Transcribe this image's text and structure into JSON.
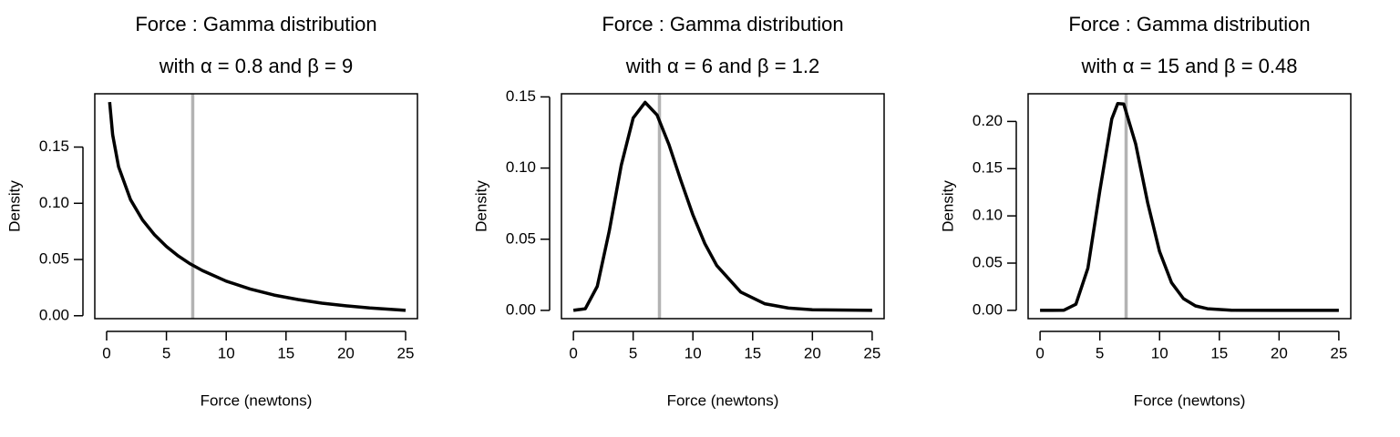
{
  "chart_data": [
    {
      "type": "line",
      "title": "Force :  Gamma distribution",
      "subtitle": "with α = 0.8 and β = 9",
      "x_label": "Force (newtons)",
      "y_label": "Density",
      "color": "#000000",
      "x": [
        0.25,
        0.5,
        1,
        2,
        3,
        4,
        5,
        6,
        7,
        8,
        10,
        12,
        14,
        16,
        18,
        20,
        22,
        25
      ],
      "values": [
        0.19,
        0.161,
        0.1325,
        0.1032,
        0.0852,
        0.072,
        0.0616,
        0.0531,
        0.0461,
        0.0402,
        0.0308,
        0.0238,
        0.0184,
        0.0144,
        0.0112,
        0.0088,
        0.0069,
        0.0048
      ],
      "vline": {
        "x": 7.2,
        "color": "#b3b3b3"
      },
      "xlim": [
        -0.99,
        25.99
      ],
      "xticks": [
        0,
        5,
        10,
        15,
        20,
        25
      ],
      "ylim": [
        -0.0026,
        0.1974
      ],
      "yticks": [
        {
          "value": 0,
          "label": "0.00"
        },
        {
          "value": 0.05,
          "label": "0.05"
        },
        {
          "value": 0.1,
          "label": "0.10"
        },
        {
          "value": 0.15,
          "label": "0.15"
        }
      ]
    },
    {
      "type": "line",
      "title": "Force :  Gamma distribution",
      "subtitle": "with α = 6 and β = 1.2",
      "x_label": "Force (newtons)",
      "y_label": "Density",
      "color": "#000000",
      "x": [
        0,
        1,
        2,
        3,
        4,
        5,
        6,
        7,
        8,
        9,
        10,
        11,
        12,
        14,
        16,
        18,
        20,
        25
      ],
      "values": [
        0,
        0.0012,
        0.0169,
        0.0557,
        0.1019,
        0.1352,
        0.1462,
        0.1373,
        0.1164,
        0.0911,
        0.0671,
        0.0469,
        0.0315,
        0.0129,
        0.0047,
        0.0016,
        0.0005,
        0
      ],
      "vline": {
        "x": 7.2,
        "color": "#b3b3b3"
      },
      "xlim": [
        -1,
        26
      ],
      "xticks": [
        0,
        5,
        10,
        15,
        20,
        25
      ],
      "ylim": [
        -0.0058,
        0.1522
      ],
      "yticks": [
        {
          "value": 0,
          "label": "0.00"
        },
        {
          "value": 0.05,
          "label": "0.05"
        },
        {
          "value": 0.1,
          "label": "0.10"
        },
        {
          "value": 0.15,
          "label": "0.15"
        }
      ]
    },
    {
      "type": "line",
      "title": "Force :  Gamma distribution",
      "subtitle": "with α = 15 and β = 0.48",
      "x_label": "Force (newtons)",
      "y_label": "Density",
      "color": "#000000",
      "x": [
        0,
        1,
        2,
        3,
        4,
        5,
        6,
        6.5,
        7,
        8,
        9,
        10,
        11,
        12,
        13,
        14,
        16,
        20,
        25
      ],
      "values": [
        0,
        0,
        0.0002,
        0.0064,
        0.0448,
        0.1267,
        0.2027,
        0.219,
        0.2185,
        0.1762,
        0.1142,
        0.0622,
        0.0294,
        0.0124,
        0.0047,
        0.0017,
        0.0002,
        0,
        0
      ],
      "vline": {
        "x": 7.2,
        "color": "#b3b3b3"
      },
      "xlim": [
        -1,
        26
      ],
      "xticks": [
        0,
        5,
        10,
        15,
        20,
        25
      ],
      "ylim": [
        -0.0088,
        0.2293
      ],
      "yticks": [
        {
          "value": 0,
          "label": "0.00"
        },
        {
          "value": 0.05,
          "label": "0.05"
        },
        {
          "value": 0.1,
          "label": "0.10"
        },
        {
          "value": 0.15,
          "label": "0.15"
        },
        {
          "value": 0.2,
          "label": "0.20"
        }
      ]
    }
  ]
}
